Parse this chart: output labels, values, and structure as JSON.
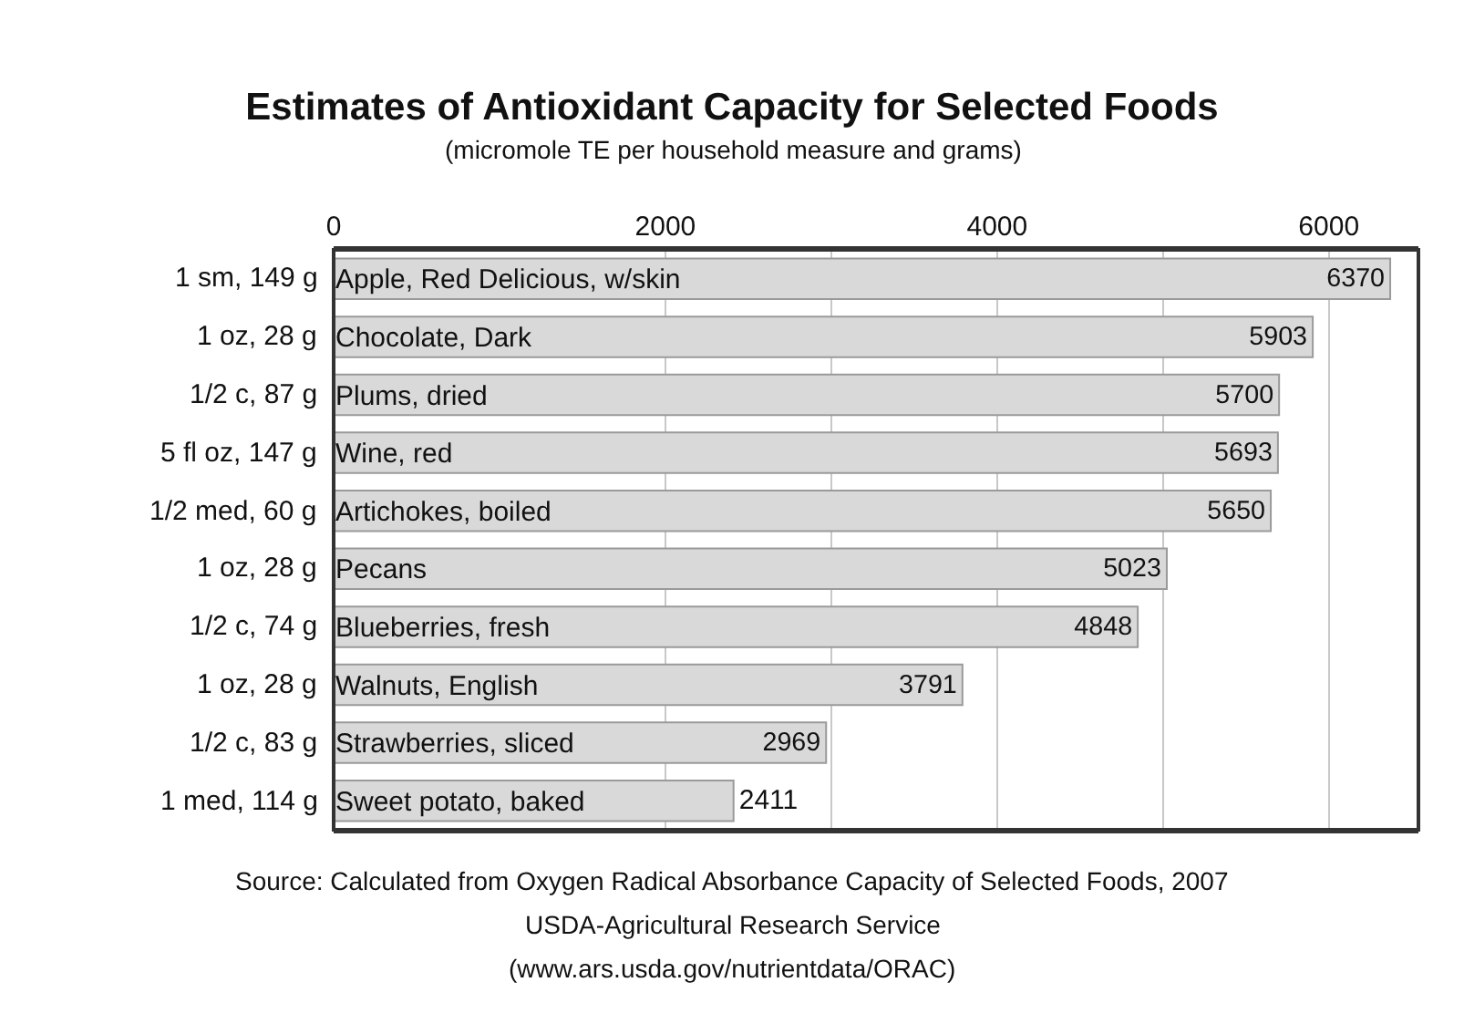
{
  "chart_data": {
    "type": "bar",
    "orientation": "horizontal",
    "title": "Estimates of Antioxidant Capacity for Selected Foods",
    "subtitle": "(micromole TE per household measure and grams)",
    "categories": [
      "Apple, Red Delicious, w/skin",
      "Chocolate, Dark",
      "Plums, dried",
      "Wine, red",
      "Artichokes, boiled",
      "Pecans",
      "Blueberries, fresh",
      "Walnuts, English",
      "Strawberries, sliced",
      "Sweet potato, baked"
    ],
    "values": [
      6370,
      5903,
      5700,
      5693,
      5650,
      5023,
      4848,
      3791,
      2969,
      2411
    ],
    "color": "#d9d9d9",
    "data_labels": true,
    "grid": "x",
    "xlim": [
      0,
      6540
    ],
    "xticks": [
      0,
      2000,
      {
        "value": 3000,
        "label": null
      },
      4000,
      {
        "value": 5000,
        "label": null
      },
      6000
    ],
    "annotations": [
      "1 sm, 149 g",
      "1 oz, 28 g",
      "1/2 c, 87 g",
      "5 fl oz, 147 g",
      "1/2 med, 60 g",
      "1 oz, 28 g",
      "1/2 c, 74 g",
      "1 oz, 28 g",
      "1/2 c, 83 g",
      "1 med, 114 g",
      "Source: Calculated from Oxygen Radical Absorbance Capacity of Selected Foods, 2007",
      "USDA-Agricultural Research Service",
      "(www.ars.usda.gov/nutrientdata/ORAC)"
    ]
  }
}
